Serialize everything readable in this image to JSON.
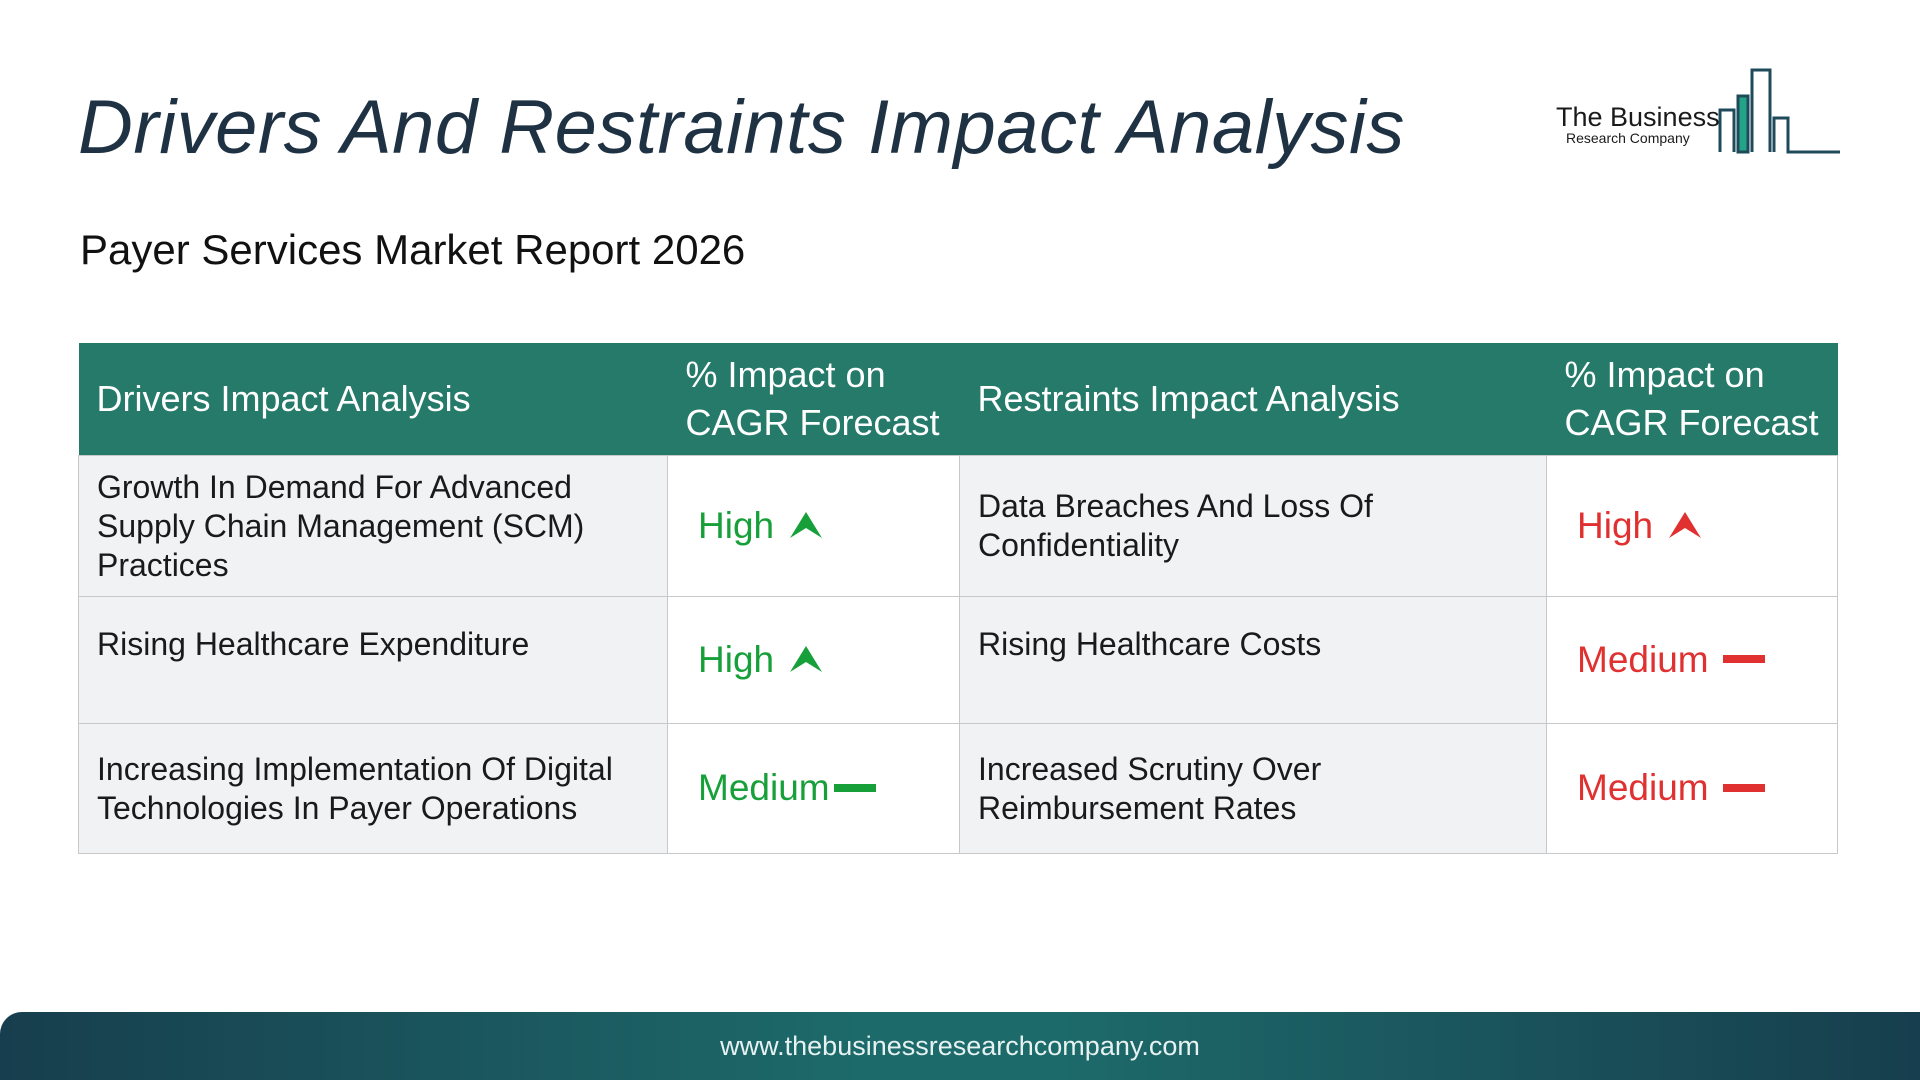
{
  "header": {
    "title": "Drivers And Restraints Impact Analysis",
    "subtitle": "Payer Services Market Report 2026"
  },
  "logo": {
    "name": "The Business",
    "tagline": "Research Company",
    "icon": "bar-chart-buildings-icon"
  },
  "table": {
    "headers": {
      "drivers": "Drivers Impact Analysis",
      "drivers_impact": "% Impact on CAGR Forecast",
      "restraints": "Restraints Impact Analysis",
      "restraints_impact": "% Impact on CAGR Forecast"
    },
    "rows": [
      {
        "driver": "Growth In Demand For Advanced Supply Chain Management (SCM) Practices",
        "driver_impact": "High",
        "driver_icon": "arrow-up-icon",
        "restraint": "Data Breaches And Loss Of Confidentiality",
        "restraint_impact": "High",
        "restraint_icon": "arrow-up-icon"
      },
      {
        "driver": "Rising Healthcare Expenditure",
        "driver_impact": "High",
        "driver_icon": "arrow-up-icon",
        "restraint": "Rising Healthcare Costs",
        "restraint_impact": "Medium",
        "restraint_icon": "dash-icon"
      },
      {
        "driver": "Increasing Implementation Of Digital Technologies In Payer Operations",
        "driver_impact": "Medium",
        "driver_icon": "dash-icon",
        "restraint": "Increased Scrutiny Over Reimbursement Rates",
        "restraint_impact": "Medium",
        "restraint_icon": "dash-icon"
      }
    ],
    "colors": {
      "header_bg": "#257a6a",
      "driver_level": "#17a03a",
      "restraint_level": "#e03030"
    }
  },
  "footer": {
    "url": "www.thebusinessresearchcompany.com"
  }
}
